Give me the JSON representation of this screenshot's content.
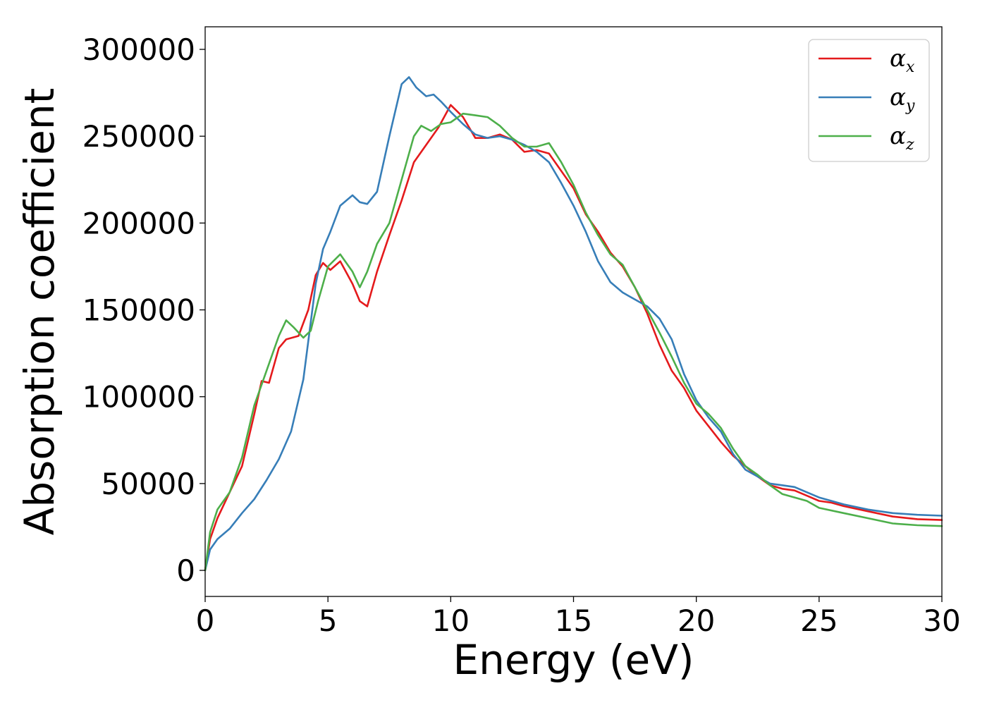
{
  "chart_data": {
    "type": "line",
    "xlabel": "Energy (eV)",
    "ylabel": "Absorption coefficient",
    "xlim": [
      0,
      30
    ],
    "ylim": [
      -15000,
      313000
    ],
    "xticks": [
      0,
      5,
      10,
      15,
      20,
      25,
      30
    ],
    "yticks": [
      0,
      50000,
      100000,
      150000,
      200000,
      250000,
      300000
    ],
    "grid": false,
    "legend_position": "top-right",
    "series": [
      {
        "name": "α",
        "subscript": "x",
        "color": "#e41a1c",
        "x": [
          0,
          0.2,
          0.5,
          1.0,
          1.5,
          2.0,
          2.3,
          2.6,
          3.0,
          3.3,
          3.8,
          4.2,
          4.5,
          4.8,
          5.1,
          5.5,
          6.0,
          6.3,
          6.6,
          7.0,
          7.5,
          8.0,
          8.5,
          9.0,
          9.5,
          10.0,
          10.5,
          11.0,
          11.5,
          12.0,
          12.5,
          13.0,
          13.5,
          14.0,
          14.5,
          15.0,
          15.5,
          16.0,
          16.5,
          17.0,
          17.5,
          18.0,
          18.5,
          19.0,
          19.5,
          20.0,
          20.5,
          21.0,
          21.5,
          22.0,
          22.5,
          23.0,
          23.5,
          24.0,
          24.5,
          25.0,
          25.5,
          26.0,
          27.0,
          28.0,
          29.0,
          30.0
        ],
        "values": [
          0,
          18000,
          30000,
          45000,
          60000,
          90000,
          109000,
          108000,
          128000,
          133000,
          135000,
          150000,
          170000,
          177000,
          173000,
          178000,
          165000,
          155000,
          152000,
          172000,
          193000,
          213000,
          235000,
          245000,
          255000,
          268000,
          261000,
          249000,
          249000,
          251000,
          248000,
          241000,
          242000,
          240000,
          230000,
          220000,
          205000,
          195000,
          183000,
          175000,
          163000,
          148000,
          130000,
          115000,
          105000,
          92000,
          83000,
          74000,
          66000,
          60000,
          54000,
          49000,
          47000,
          46000,
          43000,
          40000,
          39000,
          37000,
          34000,
          31000,
          29500,
          29000
        ]
      },
      {
        "name": "α",
        "subscript": "y",
        "color": "#377eb8",
        "x": [
          0,
          0.2,
          0.5,
          1.0,
          1.5,
          2.0,
          2.5,
          3.0,
          3.5,
          4.0,
          4.5,
          4.8,
          5.1,
          5.5,
          6.0,
          6.3,
          6.6,
          7.0,
          7.5,
          8.0,
          8.3,
          8.6,
          9.0,
          9.3,
          9.6,
          10.0,
          10.5,
          11.0,
          11.5,
          12.0,
          12.5,
          13.0,
          13.5,
          14.0,
          14.5,
          15.0,
          15.5,
          16.0,
          16.5,
          17.0,
          17.5,
          18.0,
          18.5,
          19.0,
          19.5,
          20.0,
          20.5,
          21.0,
          21.5,
          22.0,
          22.5,
          23.0,
          23.5,
          24.0,
          24.5,
          25.0,
          26.0,
          27.0,
          28.0,
          29.0,
          30.0
        ],
        "values": [
          0,
          12000,
          18000,
          24000,
          33000,
          41000,
          52000,
          64000,
          80000,
          110000,
          165000,
          185000,
          195000,
          210000,
          216000,
          212000,
          211000,
          218000,
          250000,
          280000,
          284000,
          278000,
          273000,
          274000,
          270000,
          264000,
          257000,
          251000,
          249000,
          250000,
          248000,
          245000,
          241000,
          235000,
          223000,
          210000,
          195000,
          178000,
          166000,
          160000,
          156000,
          152000,
          145000,
          133000,
          113000,
          98000,
          88000,
          80000,
          67000,
          58000,
          54000,
          50000,
          49000,
          48000,
          45000,
          42000,
          38000,
          35000,
          33000,
          32000,
          31500
        ]
      },
      {
        "name": "α",
        "subscript": "z",
        "color": "#4daf4a",
        "x": [
          0,
          0.2,
          0.5,
          1.0,
          1.5,
          2.0,
          2.5,
          3.0,
          3.3,
          3.6,
          4.0,
          4.3,
          4.6,
          5.0,
          5.5,
          6.0,
          6.3,
          6.6,
          7.0,
          7.5,
          8.0,
          8.5,
          8.8,
          9.2,
          9.6,
          10.0,
          10.5,
          11.0,
          11.5,
          12.0,
          12.5,
          13.0,
          13.5,
          14.0,
          14.5,
          15.0,
          15.5,
          16.0,
          16.5,
          17.0,
          17.5,
          18.0,
          18.5,
          19.0,
          19.5,
          20.0,
          20.5,
          21.0,
          21.5,
          22.0,
          22.5,
          23.0,
          23.5,
          24.0,
          24.5,
          25.0,
          26.0,
          27.0,
          28.0,
          29.0,
          30.0
        ],
        "values": [
          0,
          22000,
          35000,
          45000,
          65000,
          95000,
          115000,
          135000,
          144000,
          140000,
          134000,
          138000,
          155000,
          175000,
          182000,
          172000,
          163000,
          172000,
          188000,
          200000,
          225000,
          250000,
          256000,
          253000,
          257000,
          258000,
          263000,
          262000,
          261000,
          256000,
          249000,
          244000,
          244000,
          246000,
          235000,
          222000,
          206000,
          193000,
          182000,
          176000,
          163000,
          150000,
          137000,
          123000,
          108000,
          96000,
          90000,
          82000,
          70000,
          60000,
          55000,
          49000,
          44000,
          42000,
          40000,
          36000,
          33000,
          30000,
          27000,
          26000,
          25500
        ]
      }
    ]
  }
}
